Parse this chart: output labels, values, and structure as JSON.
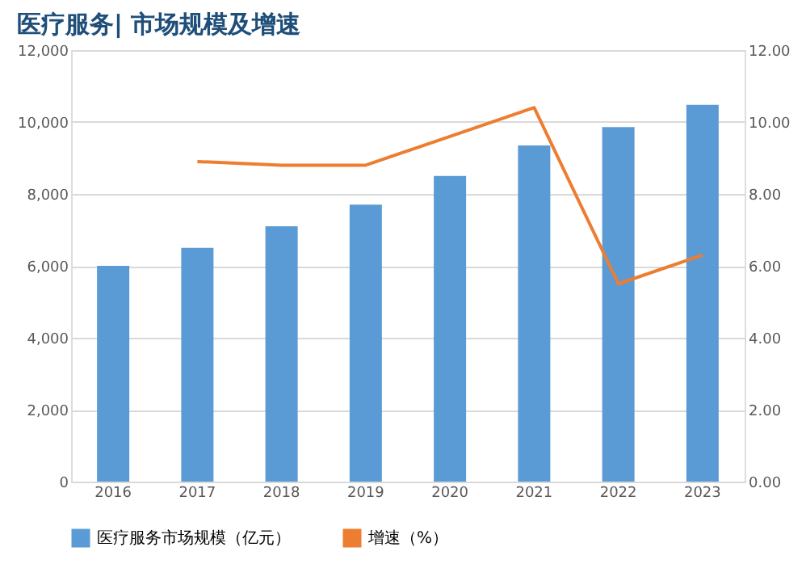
{
  "chart_data": {
    "type": "bar",
    "title": "医疗服务| 市场规模及增速",
    "categories": [
      "2016",
      "2017",
      "2018",
      "2019",
      "2020",
      "2021",
      "2022",
      "2023"
    ],
    "series": [
      {
        "name": "医疗服务市场规模（亿元）",
        "color": "#5b9bd5",
        "values": [
          6000,
          6500,
          7100,
          7700,
          8500,
          9350,
          9860,
          10480
        ]
      },
      {
        "name": "增速（%）",
        "type": "line",
        "axis": "y2",
        "color": "#ed7d31",
        "values": [
          null,
          8.9,
          8.8,
          8.8,
          9.6,
          10.4,
          5.5,
          6.3
        ]
      }
    ],
    "ylim": [
      0,
      12000
    ],
    "yticks": [
      0,
      {
        "value": 2000,
        "label": "2,000"
      },
      {
        "value": 4000,
        "label": "4,000"
      },
      {
        "value": 6000,
        "label": "6,000"
      },
      {
        "value": 8000,
        "label": "8,000"
      },
      {
        "value": 10000,
        "label": "10,000"
      },
      {
        "value": 12000,
        "label": "12,000"
      }
    ],
    "y2lim": [
      0,
      12
    ],
    "y2ticks": [
      {
        "value": 0,
        "label": "0.00"
      },
      {
        "value": 2,
        "label": "2.00"
      },
      {
        "value": 4,
        "label": "4.00"
      },
      {
        "value": 6,
        "label": "6.00"
      },
      {
        "value": 8,
        "label": "8.00"
      },
      {
        "value": 10,
        "label": "10.00"
      },
      {
        "value": 12,
        "label": "12.00"
      }
    ],
    "grid": "y",
    "legend": "bottom",
    "marker": "none",
    "line_style": "solid"
  }
}
